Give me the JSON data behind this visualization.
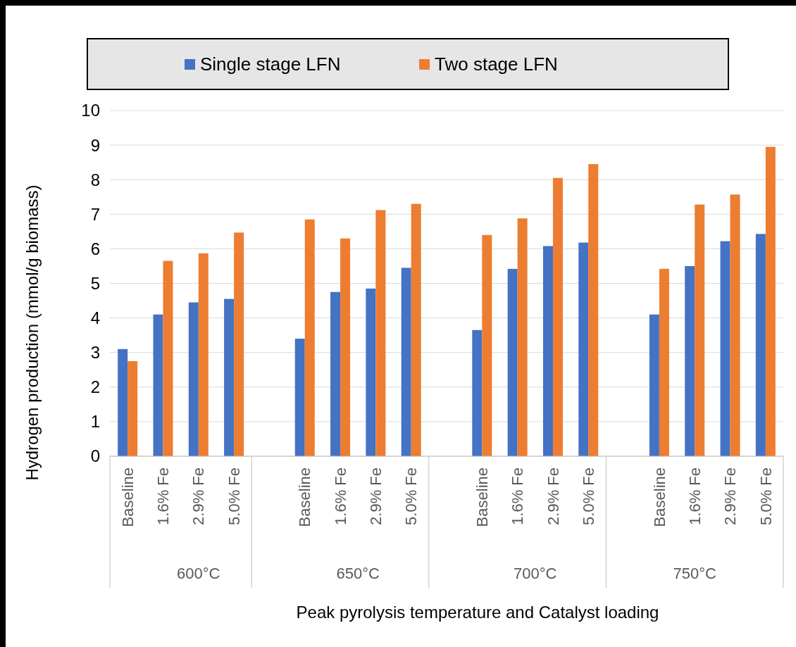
{
  "chart_data": {
    "type": "bar",
    "xlabel": "Peak pyrolysis temperature and Catalyst loading",
    "ylabel": "Hydrogen production (mmol/g biomass)",
    "categories": [
      "Baseline",
      "1.6% Fe",
      "2.9% Fe",
      "5.0% Fe",
      null,
      "Baseline",
      "1.6% Fe",
      "2.9% Fe",
      "5.0% Fe",
      null,
      "Baseline",
      "1.6% Fe",
      "2.9% Fe",
      "5.0% Fe",
      null,
      "Baseline",
      "1.6% Fe",
      "2.9% Fe",
      "5.0% Fe"
    ],
    "series": [
      {
        "name": "Single stage LFN",
        "color": "#4472c4",
        "values": [
          3.1,
          4.1,
          4.45,
          4.55,
          null,
          3.4,
          4.75,
          4.85,
          5.45,
          null,
          3.65,
          5.42,
          6.08,
          6.18,
          null,
          4.1,
          5.5,
          6.22,
          6.43
        ]
      },
      {
        "name": "Two stage LFN",
        "color": "#ed7d31",
        "values": [
          2.75,
          5.65,
          5.87,
          6.47,
          null,
          6.85,
          6.3,
          7.12,
          7.3,
          null,
          6.4,
          6.88,
          8.05,
          8.45,
          null,
          5.42,
          7.28,
          7.57,
          8.95
        ]
      }
    ],
    "annotations": [
      "600°C",
      "650°C",
      "700°C",
      "750°C"
    ],
    "ylim": [
      0,
      10
    ],
    "yticks": [
      0,
      1,
      2,
      3,
      4,
      5,
      6,
      7,
      8,
      9,
      10
    ],
    "grid": "y",
    "legend": "top"
  }
}
